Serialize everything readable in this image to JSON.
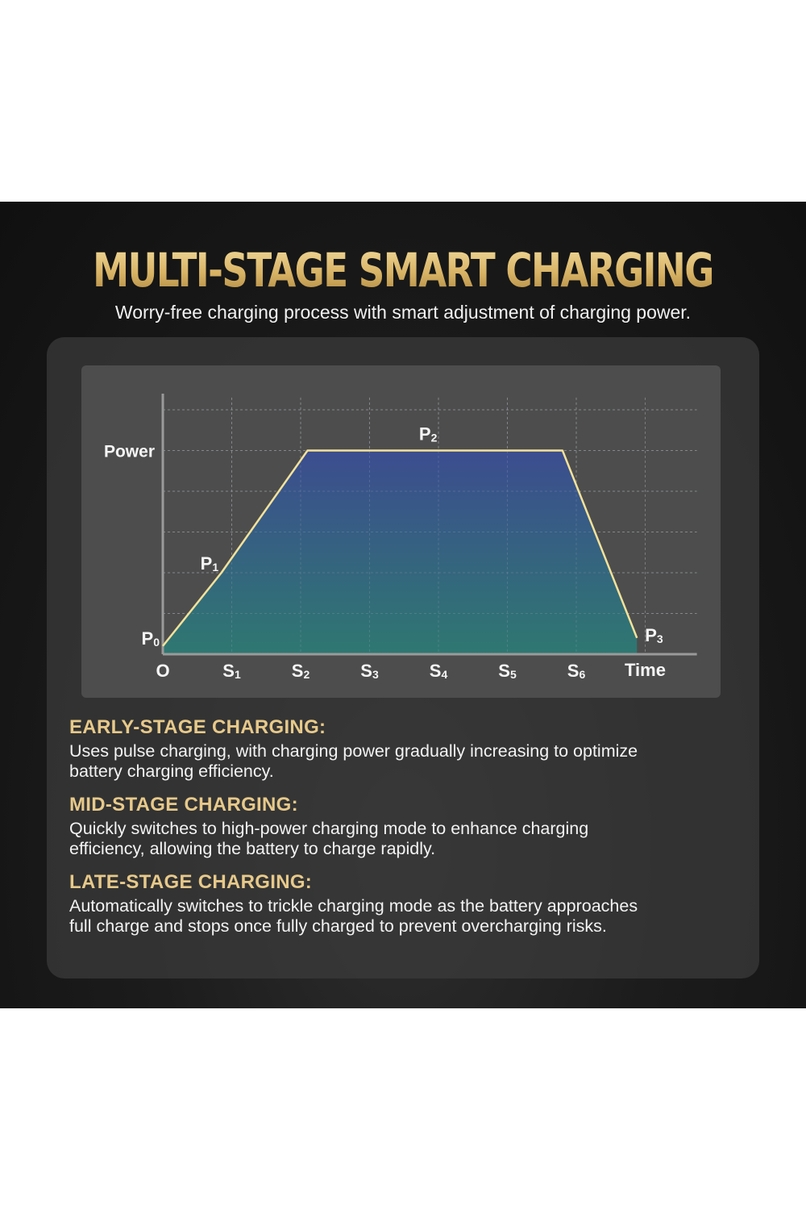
{
  "header": {
    "title": "MULTI-STAGE SMART CHARGING",
    "subtitle": "Worry-free charging process with smart adjustment of charging power."
  },
  "colors": {
    "gold": "#e2c27c",
    "curve": "#f3e29a",
    "fill_top": "#3b4d93",
    "fill_bottom": "#2d7a73",
    "panel": "#4d4d4d"
  },
  "chart_data": {
    "type": "area",
    "xlabel": "Time",
    "ylabel": "Power",
    "x_ticks": [
      "O",
      "S1",
      "S2",
      "S3",
      "S4",
      "S5",
      "S6"
    ],
    "x_tick_labels": [
      {
        "base": "O",
        "sub": ""
      },
      {
        "base": "S",
        "sub": "1"
      },
      {
        "base": "S",
        "sub": "2"
      },
      {
        "base": "S",
        "sub": "3"
      },
      {
        "base": "S",
        "sub": "4"
      },
      {
        "base": "S",
        "sub": "5"
      },
      {
        "base": "S",
        "sub": "6"
      }
    ],
    "x_range": [
      0,
      7.75
    ],
    "y_range": [
      0,
      6.3
    ],
    "grid": true,
    "points": [
      {
        "x": 0,
        "y": 0.2,
        "label": "P0",
        "base": "P",
        "sub": "0"
      },
      {
        "x": 0.85,
        "y": 2.0,
        "label": "P1",
        "base": "P",
        "sub": "1"
      },
      {
        "x": 2.1,
        "y": 5.0,
        "label": "",
        "base": "",
        "sub": ""
      },
      {
        "x": 5.8,
        "y": 5.0,
        "label": "",
        "base": "",
        "sub": ""
      },
      {
        "x": 6.88,
        "y": 0.4,
        "label": "P3",
        "base": "P",
        "sub": "3"
      }
    ],
    "plateau_label": {
      "x": 3.85,
      "y": 5.0,
      "label": "P2",
      "base": "P",
      "sub": "2"
    }
  },
  "sections": [
    {
      "title": "EARLY-STAGE CHARGING:",
      "line1": "Uses pulse charging, with charging power gradually increasing to optimize",
      "line2": "battery charging efficiency."
    },
    {
      "title": "MID-STAGE CHARGING:",
      "line1": "Quickly switches to high-power charging mode to enhance charging",
      "line2": "efficiency, allowing the battery to charge rapidly."
    },
    {
      "title": "LATE-STAGE CHARGING:",
      "line1": "Automatically switches to trickle charging mode as the battery approaches",
      "line2": "full charge and stops once fully charged to prevent overcharging risks."
    }
  ]
}
